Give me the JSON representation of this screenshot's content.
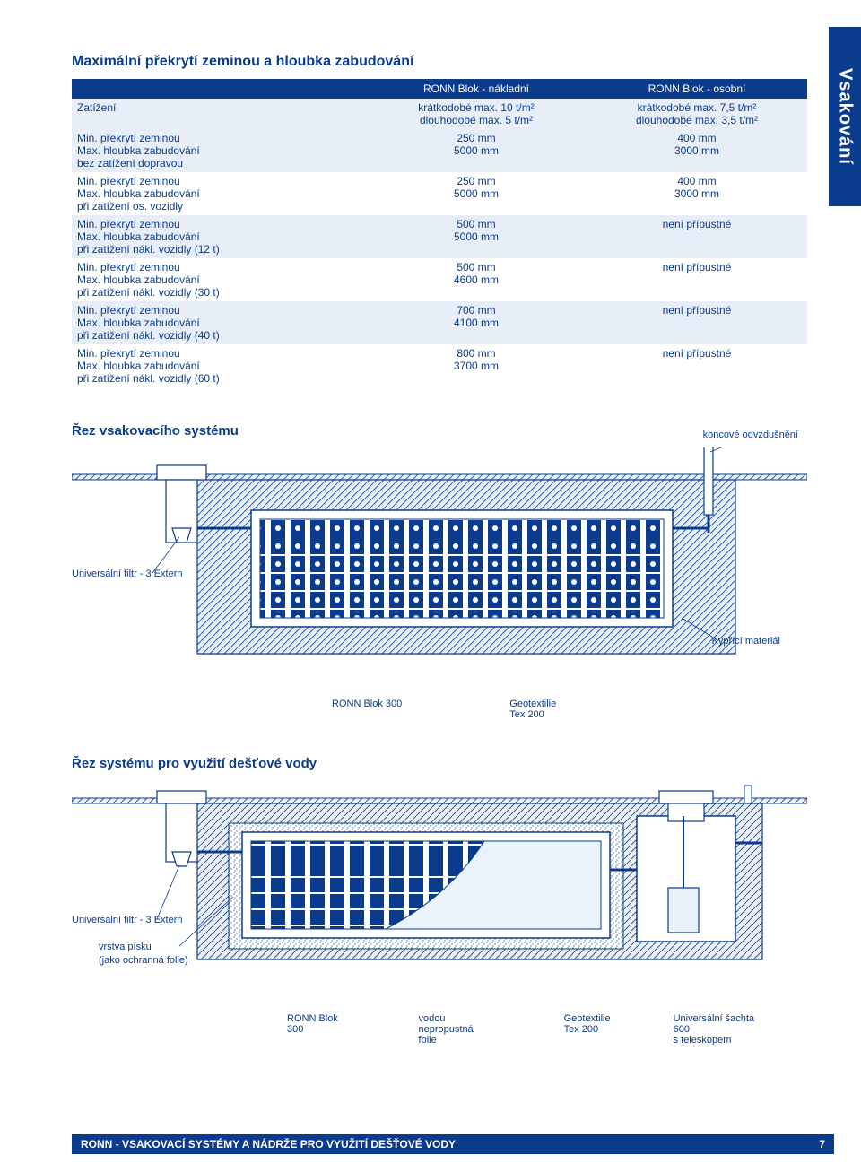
{
  "side_tab": "Vsakování",
  "table": {
    "title": "Maximální překrytí zeminou a hloubka zabudování",
    "col1_header": "RONN Blok - nákladní",
    "col2_header": "RONN Blok - osobní",
    "load_label": "Zatížení",
    "load_col1_line1": "krátkodobé max. 10 t/m²",
    "load_col1_line2": "dlouhodobé max. 5 t/m²",
    "load_col2_line1": "krátkodobé max. 7,5 t/m²",
    "load_col2_line2": "dlouhodobé max. 3,5 t/m²",
    "rows": [
      {
        "l1": "Min. překrytí zeminou",
        "l2": "Max. hloubka zabudování",
        "l3": "bez zatížení dopravou",
        "c1a": "250 mm",
        "c1b": "5000 mm",
        "c2a": "400 mm",
        "c2b": "3000 mm",
        "band": "band-light"
      },
      {
        "l1": "Min. překrytí zeminou",
        "l2": "Max. hloubka zabudování",
        "l3": "při zatížení os. vozidly",
        "c1a": "250 mm",
        "c1b": "5000 mm",
        "c2a": "400 mm",
        "c2b": "3000 mm",
        "band": "band-white"
      },
      {
        "l1": "Min. překrytí zeminou",
        "l2": "Max. hloubka zabudování",
        "l3": "při zatížení nákl. vozidly (12 t)",
        "c1a": "500 mm",
        "c1b": "5000 mm",
        "c2a": "",
        "c2b": "není přípustné",
        "band": "band-light"
      },
      {
        "l1": "Min. překrytí zeminou",
        "l2": "Max. hloubka zabudování",
        "l3": "při zatížení nákl. vozidly (30 t)",
        "c1a": "500 mm",
        "c1b": "4600 mm",
        "c2a": "",
        "c2b": "není přípustné",
        "band": "band-white"
      },
      {
        "l1": "Min. překrytí zeminou",
        "l2": "Max. hloubka zabudování",
        "l3": "při zatížení nákl. vozidly (40 t)",
        "c1a": "700 mm",
        "c1b": "4100 mm",
        "c2a": "",
        "c2b": "není přípustné",
        "band": "band-light"
      },
      {
        "l1": "Min. překrytí zeminou",
        "l2": "Max. hloubka zabudování",
        "l3": "při zatížení nákl. vozidly (60 t)",
        "c1a": "800 mm",
        "c1b": "3700 mm",
        "c2a": "",
        "c2b": "není přípustné",
        "band": "band-white"
      }
    ]
  },
  "diagram1": {
    "title": "Řez vsakovacího systému",
    "label_koncove": "koncové odvzdušnění",
    "label_filtr": "Universální filtr - 3 Extern",
    "label_kypr": "Kypřící materiál",
    "label_ronn": "RONN Blok 300",
    "label_geo": "Geotextilie",
    "label_tex": "Tex 200",
    "colors": {
      "stroke": "#0a3b8c",
      "hatched_fill": "#dbe6f6",
      "block_fill": "#0a3b8c",
      "ground": "#f5f7fb"
    }
  },
  "diagram2": {
    "title": "Řez systému pro využití dešťové vody",
    "label_filtr": "Universální filtr - 3 Extern",
    "label_pisek": "vrstva písku",
    "label_pisek2": "(jako ochranná folie)",
    "label_ronn": "RONN Blok 300",
    "label_folie1": "vodou nepropustná",
    "label_folie2": "folie",
    "label_geo": "Geotextilie",
    "label_tex": "Tex 200",
    "label_sachta1": "Universální šachta  600",
    "label_sachta2": "s teleskopem"
  },
  "footer": {
    "text": "RONN - VSAKOVACÍ SYSTÉMY A NÁDRŽE PRO VYUŽITÍ DEŠŤOVÉ VODY",
    "page": "7"
  }
}
